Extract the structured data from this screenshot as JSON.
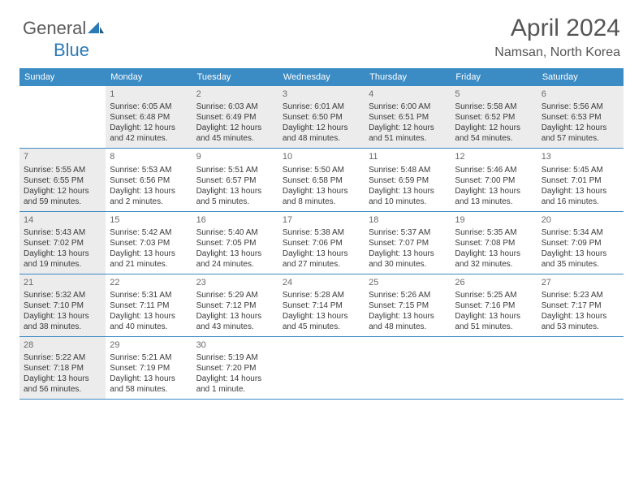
{
  "logo": {
    "word1": "General",
    "word2": "Blue"
  },
  "colors": {
    "header_bg": "#3b8bc4",
    "header_text": "#ffffff",
    "shaded_bg": "#ececec",
    "border": "#3b8bc4",
    "logo_gray": "#5a5a5a",
    "logo_blue": "#2a7ab8",
    "title_color": "#555555",
    "text_color": "#3a3a3a",
    "daynum_color": "#6a6a6a"
  },
  "title": "April 2024",
  "location": "Namsan, North Korea",
  "weekdays": [
    "Sunday",
    "Monday",
    "Tuesday",
    "Wednesday",
    "Thursday",
    "Friday",
    "Saturday"
  ],
  "weeks": [
    [
      {
        "num": "",
        "sunrise": "",
        "sunset": "",
        "daylight": "",
        "shaded": false
      },
      {
        "num": "1",
        "sunrise": "Sunrise: 6:05 AM",
        "sunset": "Sunset: 6:48 PM",
        "daylight": "Daylight: 12 hours and 42 minutes.",
        "shaded": true
      },
      {
        "num": "2",
        "sunrise": "Sunrise: 6:03 AM",
        "sunset": "Sunset: 6:49 PM",
        "daylight": "Daylight: 12 hours and 45 minutes.",
        "shaded": true
      },
      {
        "num": "3",
        "sunrise": "Sunrise: 6:01 AM",
        "sunset": "Sunset: 6:50 PM",
        "daylight": "Daylight: 12 hours and 48 minutes.",
        "shaded": true
      },
      {
        "num": "4",
        "sunrise": "Sunrise: 6:00 AM",
        "sunset": "Sunset: 6:51 PM",
        "daylight": "Daylight: 12 hours and 51 minutes.",
        "shaded": true
      },
      {
        "num": "5",
        "sunrise": "Sunrise: 5:58 AM",
        "sunset": "Sunset: 6:52 PM",
        "daylight": "Daylight: 12 hours and 54 minutes.",
        "shaded": true
      },
      {
        "num": "6",
        "sunrise": "Sunrise: 5:56 AM",
        "sunset": "Sunset: 6:53 PM",
        "daylight": "Daylight: 12 hours and 57 minutes.",
        "shaded": true
      }
    ],
    [
      {
        "num": "7",
        "sunrise": "Sunrise: 5:55 AM",
        "sunset": "Sunset: 6:55 PM",
        "daylight": "Daylight: 12 hours and 59 minutes.",
        "shaded": true
      },
      {
        "num": "8",
        "sunrise": "Sunrise: 5:53 AM",
        "sunset": "Sunset: 6:56 PM",
        "daylight": "Daylight: 13 hours and 2 minutes.",
        "shaded": false
      },
      {
        "num": "9",
        "sunrise": "Sunrise: 5:51 AM",
        "sunset": "Sunset: 6:57 PM",
        "daylight": "Daylight: 13 hours and 5 minutes.",
        "shaded": false
      },
      {
        "num": "10",
        "sunrise": "Sunrise: 5:50 AM",
        "sunset": "Sunset: 6:58 PM",
        "daylight": "Daylight: 13 hours and 8 minutes.",
        "shaded": false
      },
      {
        "num": "11",
        "sunrise": "Sunrise: 5:48 AM",
        "sunset": "Sunset: 6:59 PM",
        "daylight": "Daylight: 13 hours and 10 minutes.",
        "shaded": false
      },
      {
        "num": "12",
        "sunrise": "Sunrise: 5:46 AM",
        "sunset": "Sunset: 7:00 PM",
        "daylight": "Daylight: 13 hours and 13 minutes.",
        "shaded": false
      },
      {
        "num": "13",
        "sunrise": "Sunrise: 5:45 AM",
        "sunset": "Sunset: 7:01 PM",
        "daylight": "Daylight: 13 hours and 16 minutes.",
        "shaded": false
      }
    ],
    [
      {
        "num": "14",
        "sunrise": "Sunrise: 5:43 AM",
        "sunset": "Sunset: 7:02 PM",
        "daylight": "Daylight: 13 hours and 19 minutes.",
        "shaded": true
      },
      {
        "num": "15",
        "sunrise": "Sunrise: 5:42 AM",
        "sunset": "Sunset: 7:03 PM",
        "daylight": "Daylight: 13 hours and 21 minutes.",
        "shaded": false
      },
      {
        "num": "16",
        "sunrise": "Sunrise: 5:40 AM",
        "sunset": "Sunset: 7:05 PM",
        "daylight": "Daylight: 13 hours and 24 minutes.",
        "shaded": false
      },
      {
        "num": "17",
        "sunrise": "Sunrise: 5:38 AM",
        "sunset": "Sunset: 7:06 PM",
        "daylight": "Daylight: 13 hours and 27 minutes.",
        "shaded": false
      },
      {
        "num": "18",
        "sunrise": "Sunrise: 5:37 AM",
        "sunset": "Sunset: 7:07 PM",
        "daylight": "Daylight: 13 hours and 30 minutes.",
        "shaded": false
      },
      {
        "num": "19",
        "sunrise": "Sunrise: 5:35 AM",
        "sunset": "Sunset: 7:08 PM",
        "daylight": "Daylight: 13 hours and 32 minutes.",
        "shaded": false
      },
      {
        "num": "20",
        "sunrise": "Sunrise: 5:34 AM",
        "sunset": "Sunset: 7:09 PM",
        "daylight": "Daylight: 13 hours and 35 minutes.",
        "shaded": false
      }
    ],
    [
      {
        "num": "21",
        "sunrise": "Sunrise: 5:32 AM",
        "sunset": "Sunset: 7:10 PM",
        "daylight": "Daylight: 13 hours and 38 minutes.",
        "shaded": true
      },
      {
        "num": "22",
        "sunrise": "Sunrise: 5:31 AM",
        "sunset": "Sunset: 7:11 PM",
        "daylight": "Daylight: 13 hours and 40 minutes.",
        "shaded": false
      },
      {
        "num": "23",
        "sunrise": "Sunrise: 5:29 AM",
        "sunset": "Sunset: 7:12 PM",
        "daylight": "Daylight: 13 hours and 43 minutes.",
        "shaded": false
      },
      {
        "num": "24",
        "sunrise": "Sunrise: 5:28 AM",
        "sunset": "Sunset: 7:14 PM",
        "daylight": "Daylight: 13 hours and 45 minutes.",
        "shaded": false
      },
      {
        "num": "25",
        "sunrise": "Sunrise: 5:26 AM",
        "sunset": "Sunset: 7:15 PM",
        "daylight": "Daylight: 13 hours and 48 minutes.",
        "shaded": false
      },
      {
        "num": "26",
        "sunrise": "Sunrise: 5:25 AM",
        "sunset": "Sunset: 7:16 PM",
        "daylight": "Daylight: 13 hours and 51 minutes.",
        "shaded": false
      },
      {
        "num": "27",
        "sunrise": "Sunrise: 5:23 AM",
        "sunset": "Sunset: 7:17 PM",
        "daylight": "Daylight: 13 hours and 53 minutes.",
        "shaded": false
      }
    ],
    [
      {
        "num": "28",
        "sunrise": "Sunrise: 5:22 AM",
        "sunset": "Sunset: 7:18 PM",
        "daylight": "Daylight: 13 hours and 56 minutes.",
        "shaded": true
      },
      {
        "num": "29",
        "sunrise": "Sunrise: 5:21 AM",
        "sunset": "Sunset: 7:19 PM",
        "daylight": "Daylight: 13 hours and 58 minutes.",
        "shaded": false
      },
      {
        "num": "30",
        "sunrise": "Sunrise: 5:19 AM",
        "sunset": "Sunset: 7:20 PM",
        "daylight": "Daylight: 14 hours and 1 minute.",
        "shaded": false
      },
      {
        "num": "",
        "sunrise": "",
        "sunset": "",
        "daylight": "",
        "shaded": false
      },
      {
        "num": "",
        "sunrise": "",
        "sunset": "",
        "daylight": "",
        "shaded": false
      },
      {
        "num": "",
        "sunrise": "",
        "sunset": "",
        "daylight": "",
        "shaded": false
      },
      {
        "num": "",
        "sunrise": "",
        "sunset": "",
        "daylight": "",
        "shaded": false
      }
    ]
  ]
}
